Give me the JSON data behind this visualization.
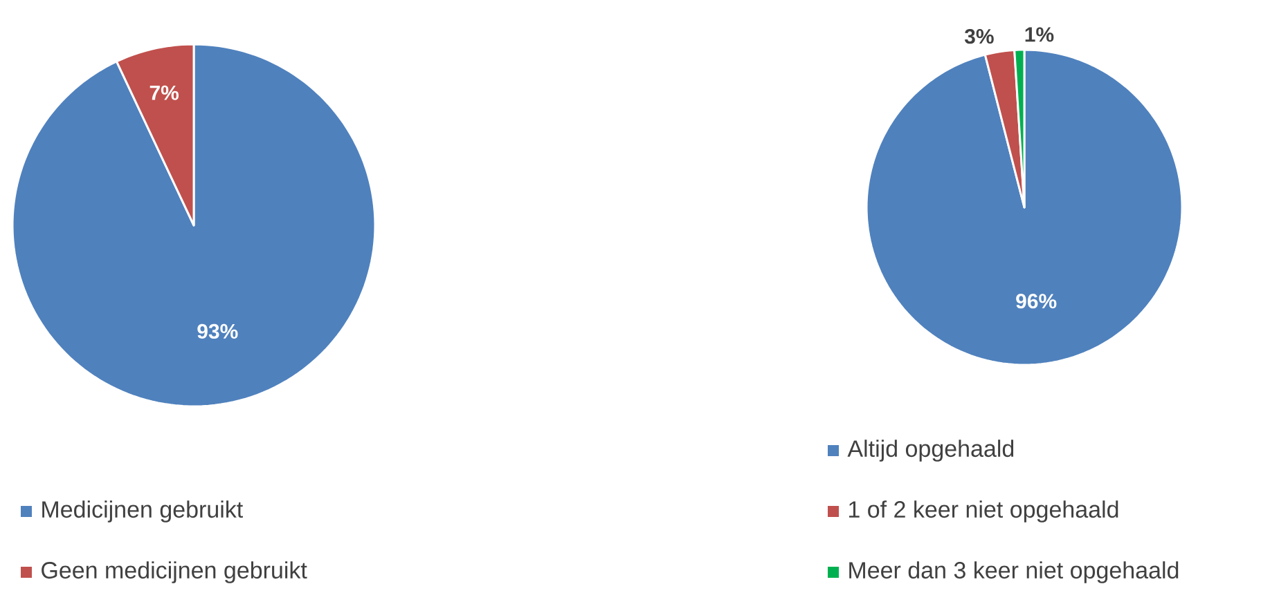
{
  "chart_data": [
    {
      "type": "pie",
      "categories": [
        "Medicijnen gebruikt",
        "Geen medicijnen gebruikt"
      ],
      "values": [
        93,
        7
      ],
      "colors": [
        "#4f81bd",
        "#c0504d"
      ],
      "value_labels": [
        "93%",
        "7%"
      ],
      "legend": "bottom"
    },
    {
      "type": "pie",
      "categories": [
        "Altijd opgehaald",
        "1 of 2 keer niet opgehaald",
        "Meer dan 3 keer niet opgehaald"
      ],
      "values": [
        96,
        3,
        1
      ],
      "colors": [
        "#4f81bd",
        "#c0504d",
        "#00b050"
      ],
      "value_labels": [
        "96%",
        "3%",
        "1%"
      ],
      "legend": "bottom"
    }
  ]
}
